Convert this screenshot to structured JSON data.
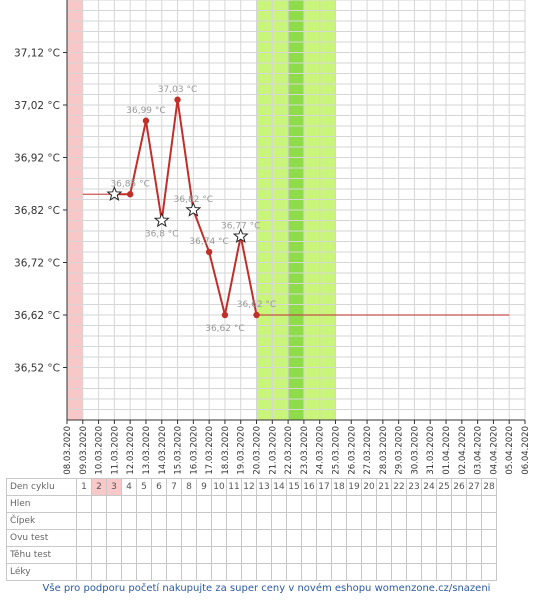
{
  "chart_data": {
    "type": "line",
    "unit": "°C",
    "y_ticks": [
      "37,12 °C",
      "37,02 °C",
      "36,92 °C",
      "36,82 °C",
      "36,72 °C",
      "36,62 °C",
      "36,52 °C"
    ],
    "y_tick_values": [
      37.12,
      37.02,
      36.92,
      36.82,
      36.72,
      36.62,
      36.52
    ],
    "ylim": [
      36.42,
      37.22
    ],
    "dates": [
      "08.03.2020",
      "09.03.2020",
      "10.03.2020",
      "11.03.2020",
      "12.03.2020",
      "13.03.2020",
      "14.03.2020",
      "15.03.2020",
      "16.03.2020",
      "17.03.2020",
      "18.03.2020",
      "19.03.2020",
      "20.03.2020",
      "21.03.2020",
      "22.03.2020",
      "23.03.2020",
      "24.03.2020",
      "25.03.2020",
      "26.03.2020",
      "27.03.2020",
      "28.03.2020",
      "29.03.2020",
      "30.03.2020",
      "31.03.2020",
      "01.04.2020",
      "02.04.2020",
      "03.04.2020",
      "04.04.2020",
      "05.04.2020",
      "06.04.2020"
    ],
    "series": [
      {
        "points": [
          {
            "date": "11.03.2020",
            "value": 36.85,
            "marker": "star",
            "label": ""
          },
          {
            "date": "12.03.2020",
            "value": 36.85,
            "marker": "dot",
            "label": "36,85 °C"
          },
          {
            "date": "13.03.2020",
            "value": 36.99,
            "marker": "dot",
            "label": "36,99 °C"
          },
          {
            "date": "14.03.2020",
            "value": 36.8,
            "marker": "star",
            "label": "36,8 °C"
          },
          {
            "date": "15.03.2020",
            "value": 37.03,
            "marker": "dot",
            "label": "37,03 °C"
          },
          {
            "date": "16.03.2020",
            "value": 36.82,
            "marker": "star",
            "label": "36,82 °C"
          },
          {
            "date": "17.03.2020",
            "value": 36.74,
            "marker": "dot",
            "label": "36,74 °C"
          },
          {
            "date": "18.03.2020",
            "value": 36.62,
            "marker": "dot",
            "label": "36,62 °C"
          },
          {
            "date": "19.03.2020",
            "value": 36.77,
            "marker": "star",
            "label": "36,77 °C"
          },
          {
            "date": "20.03.2020",
            "value": 36.62,
            "marker": "dot",
            "label": "36,62 °C"
          }
        ],
        "color": "#c0302a"
      }
    ],
    "baseline": {
      "value": 36.85,
      "from": "09.03.2020",
      "to": "11.03.2020"
    },
    "projection": {
      "value": 36.62,
      "from": "20.03.2020",
      "to": "05.04.2020"
    },
    "bands": [
      {
        "from": "08.03.2020",
        "to": "09.03.2020",
        "kind": "menstruation",
        "color": "#f8c8c8"
      },
      {
        "from": "20.03.2020",
        "to": "25.03.2020",
        "kind": "fertile",
        "color": "#c8f57a"
      },
      {
        "from": "22.03.2020",
        "to": "23.03.2020",
        "kind": "ovulation",
        "color": "#8fdc4a"
      }
    ],
    "grid": true
  },
  "table": {
    "header_label": "Den cyklu",
    "days": [
      "1",
      "2",
      "3",
      "4",
      "5",
      "6",
      "7",
      "8",
      "9",
      "10",
      "11",
      "12",
      "13",
      "14",
      "15",
      "16",
      "17",
      "18",
      "19",
      "20",
      "21",
      "22",
      "23",
      "24",
      "25",
      "26",
      "27",
      "28"
    ],
    "highlighted_days": [
      "2",
      "3"
    ],
    "rows": [
      "Hlen",
      "Čípek",
      "Ovu test",
      "Těhu test",
      "Léky"
    ]
  },
  "footer": {
    "text": "Vše pro podporu početí nakupujte za super ceny v novém eshopu womenzone.cz/snazeni"
  },
  "colors": {
    "line": "#c0302a",
    "point_label": "#999999",
    "axis_text": "#333333",
    "grid": "#d6d6d6",
    "footer": "#2b5aa0"
  }
}
